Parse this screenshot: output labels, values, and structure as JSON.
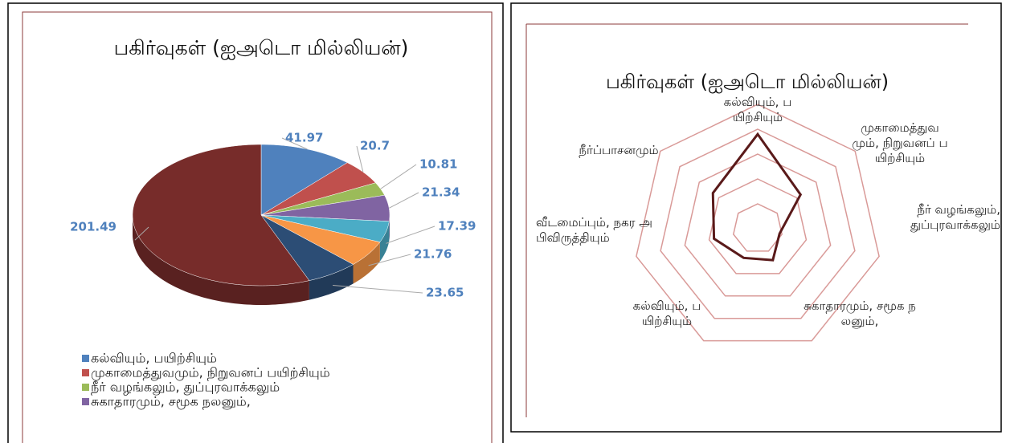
{
  "chart_data": [
    {
      "type": "pie3d",
      "title": "பகிர்வுகள் (ஐஅடொ மில்லியன்)",
      "categories": [
        "கல்வியும், பயிற்சியும்",
        "முகாமைத்துவமும், நிறுவனப் பயிற்சியும்",
        "நீர் வழங்கலும், துப்புரவாக்கலும்",
        "சுகாதாரமும், சமூக நலனும்,",
        null,
        null,
        null,
        null
      ],
      "values": [
        41.97,
        20.7,
        10.81,
        21.34,
        17.39,
        21.76,
        23.65,
        201.49
      ],
      "colors": [
        "#4f81bd",
        "#c0504d",
        "#9bbb59",
        "#8064a2",
        "#4bacc6",
        "#f79646",
        "#2c4d75",
        "#772c2a"
      ],
      "legend": "bottom-left"
    },
    {
      "type": "radar",
      "title": "பகிர்வுகள்  (ஐஅடொ மில்லியன்)",
      "categories": [
        "கல்வியும், பயிற்சியும்",
        "முகாமைத்துவமும், நிறுவனப் பயிற்சியும்",
        "நீர் வழங்கலும், துப்புரவாக்கலும்",
        "சுகாதாரமும், சமூக நலனும்,",
        "கல்வியும், பயிற்சியும்",
        "வீடமைப்பும், நகர அபிவிருத்தியும்",
        "நீர்ப்பாசனமும்"
      ],
      "values": [
        3.8,
        2.2,
        0.9,
        1.4,
        1.3,
        1.8,
        2.3
      ],
      "color": "#5a1a1a",
      "grid_color": "#d99a98",
      "ylim": [
        0,
        5
      ],
      "yticks": [
        1,
        2,
        3,
        4,
        5
      ]
    }
  ]
}
